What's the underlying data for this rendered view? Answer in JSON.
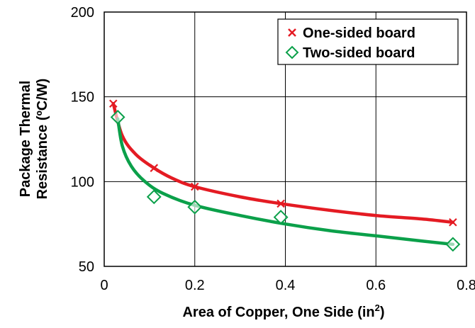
{
  "chart_data": {
    "type": "scatter",
    "xlabel": "Area of Copper, One Side (in",
    "xlabel_sup": "2",
    "xlabel_end": ")",
    "ylabel_line1": "Package Thermal",
    "ylabel_line2": "Resistance (ºC/W)",
    "xlim": [
      0,
      0.8
    ],
    "ylim": [
      50,
      200
    ],
    "x_ticks": [
      0,
      0.2,
      0.4,
      0.6,
      0.8
    ],
    "x_tick_labels": [
      "0",
      "0.2",
      "0.4",
      "0.6",
      "0.8"
    ],
    "y_ticks": [
      50,
      100,
      150,
      200
    ],
    "y_tick_labels": [
      "50",
      "100",
      "150",
      "200"
    ],
    "grid": true,
    "legend_position": "top-right",
    "series": [
      {
        "name": "One-sided board",
        "marker": "x",
        "color": "#e41b23",
        "x": [
          0.02,
          0.11,
          0.2,
          0.39,
          0.77
        ],
        "y": [
          146,
          108,
          97,
          87,
          76
        ],
        "trend": [
          [
            0.02,
            146
          ],
          [
            0.04,
            127
          ],
          [
            0.07,
            116
          ],
          [
            0.11,
            108
          ],
          [
            0.15,
            102
          ],
          [
            0.2,
            97
          ],
          [
            0.3,
            91
          ],
          [
            0.39,
            87
          ],
          [
            0.5,
            83
          ],
          [
            0.6,
            80
          ],
          [
            0.7,
            78
          ],
          [
            0.77,
            76
          ]
        ]
      },
      {
        "name": "Two-sided board",
        "marker": "diamond",
        "color": "#0ba04a",
        "x": [
          0.03,
          0.11,
          0.2,
          0.39,
          0.77
        ],
        "y": [
          138,
          91,
          85,
          79,
          63
        ],
        "trend": [
          [
            0.03,
            137
          ],
          [
            0.04,
            121
          ],
          [
            0.06,
            109
          ],
          [
            0.09,
            100
          ],
          [
            0.13,
            93
          ],
          [
            0.2,
            86
          ],
          [
            0.3,
            80
          ],
          [
            0.4,
            75
          ],
          [
            0.5,
            71
          ],
          [
            0.6,
            68
          ],
          [
            0.7,
            65
          ],
          [
            0.77,
            63
          ]
        ]
      }
    ]
  }
}
